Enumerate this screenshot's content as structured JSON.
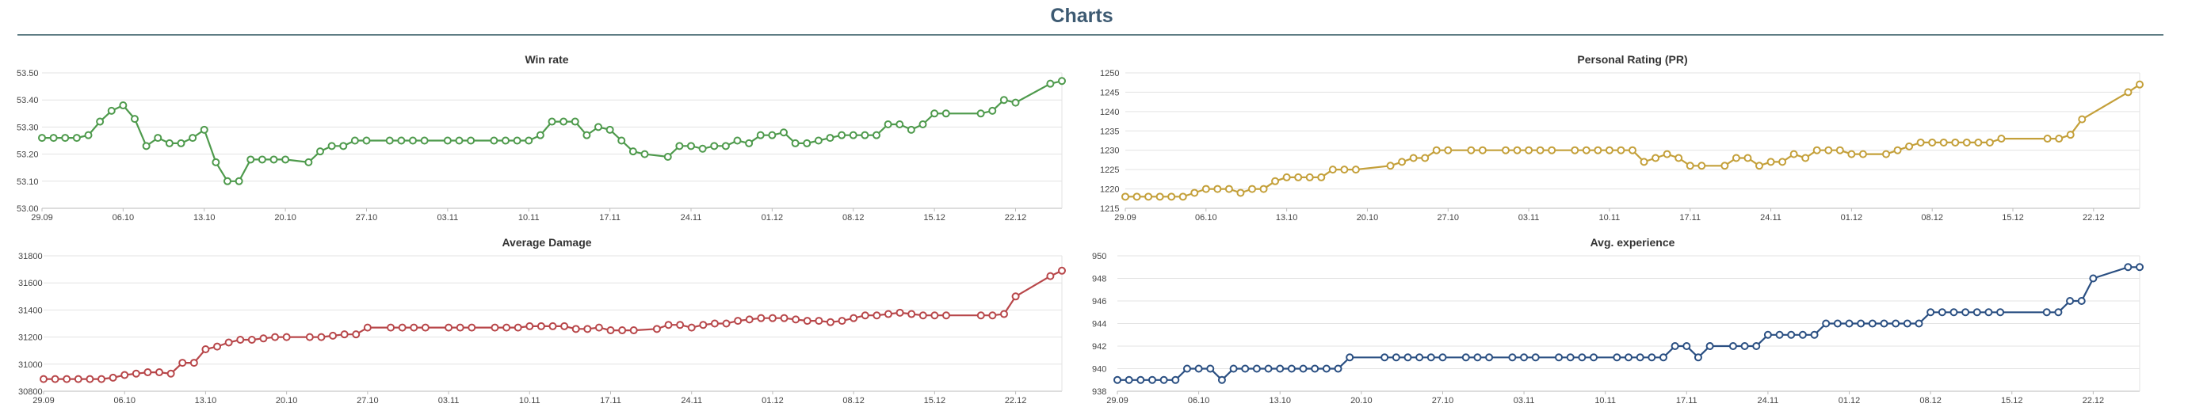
{
  "page": {
    "title": "Charts"
  },
  "x_ticks": [
    "29.09",
    "06.10",
    "13.10",
    "20.10",
    "27.10",
    "03.11",
    "10.11",
    "17.11",
    "24.11",
    "01.12",
    "08.12",
    "15.12",
    "22.12"
  ],
  "chart_data": [
    {
      "type": "line",
      "title": "Win rate",
      "color": "#4e9a4c",
      "ylim": [
        53.0,
        53.5
      ],
      "yticks": [
        "53.00",
        "53.10",
        "53.20",
        "53.30",
        "53.40",
        "53.50"
      ],
      "xticks": [
        "29.09",
        "06.10",
        "13.10",
        "20.10",
        "27.10",
        "03.11",
        "10.11",
        "17.11",
        "24.11",
        "01.12",
        "08.12",
        "15.12",
        "22.12"
      ],
      "grid": true,
      "points": [
        [
          0,
          53.26
        ],
        [
          1,
          53.26
        ],
        [
          2,
          53.26
        ],
        [
          3,
          53.26
        ],
        [
          4,
          53.27
        ],
        [
          5,
          53.32
        ],
        [
          6,
          53.36
        ],
        [
          7,
          53.38
        ],
        [
          8,
          53.33
        ],
        [
          9,
          53.23
        ],
        [
          10,
          53.26
        ],
        [
          11,
          53.24
        ],
        [
          12,
          53.24
        ],
        [
          13,
          53.26
        ],
        [
          14,
          53.29
        ],
        [
          15,
          53.17
        ],
        [
          16,
          53.1
        ],
        [
          17,
          53.1
        ],
        [
          18,
          53.18
        ],
        [
          19,
          53.18
        ],
        [
          20,
          53.18
        ],
        [
          21,
          53.18
        ],
        [
          23,
          53.17
        ],
        [
          24,
          53.21
        ],
        [
          25,
          53.23
        ],
        [
          26,
          53.23
        ],
        [
          27,
          53.25
        ],
        [
          28,
          53.25
        ],
        [
          30,
          53.25
        ],
        [
          31,
          53.25
        ],
        [
          32,
          53.25
        ],
        [
          33,
          53.25
        ],
        [
          35,
          53.25
        ],
        [
          36,
          53.25
        ],
        [
          37,
          53.25
        ],
        [
          39,
          53.25
        ],
        [
          40,
          53.25
        ],
        [
          41,
          53.25
        ],
        [
          42,
          53.25
        ],
        [
          43,
          53.27
        ],
        [
          44,
          53.32
        ],
        [
          45,
          53.32
        ],
        [
          46,
          53.32
        ],
        [
          47,
          53.27
        ],
        [
          48,
          53.3
        ],
        [
          49,
          53.29
        ],
        [
          50,
          53.25
        ],
        [
          51,
          53.21
        ],
        [
          52,
          53.2
        ],
        [
          54,
          53.19
        ],
        [
          55,
          53.23
        ],
        [
          56,
          53.23
        ],
        [
          57,
          53.22
        ],
        [
          58,
          53.23
        ],
        [
          59,
          53.23
        ],
        [
          60,
          53.25
        ],
        [
          61,
          53.24
        ],
        [
          62,
          53.27
        ],
        [
          63,
          53.27
        ],
        [
          64,
          53.28
        ],
        [
          65,
          53.24
        ],
        [
          66,
          53.24
        ],
        [
          67,
          53.25
        ],
        [
          68,
          53.26
        ],
        [
          69,
          53.27
        ],
        [
          70,
          53.27
        ],
        [
          71,
          53.27
        ],
        [
          72,
          53.27
        ],
        [
          73,
          53.31
        ],
        [
          74,
          53.31
        ],
        [
          75,
          53.29
        ],
        [
          76,
          53.31
        ],
        [
          77,
          53.35
        ],
        [
          78,
          53.35
        ],
        [
          81,
          53.35
        ],
        [
          82,
          53.36
        ],
        [
          83,
          53.4
        ],
        [
          84,
          53.39
        ],
        [
          87,
          53.46
        ],
        [
          88,
          53.47
        ]
      ]
    },
    {
      "type": "line",
      "title": "Personal Rating (PR)",
      "color": "#c4a03a",
      "ylim": [
        1215,
        1250
      ],
      "yticks": [
        "1215",
        "1220",
        "1225",
        "1230",
        "1235",
        "1240",
        "1245",
        "1250"
      ],
      "xticks": [
        "29.09",
        "06.10",
        "13.10",
        "20.10",
        "27.10",
        "03.11",
        "10.11",
        "17.11",
        "24.11",
        "01.12",
        "08.12",
        "15.12",
        "22.12"
      ],
      "grid": true,
      "points": [
        [
          0,
          1218
        ],
        [
          1,
          1218
        ],
        [
          2,
          1218
        ],
        [
          3,
          1218
        ],
        [
          4,
          1218
        ],
        [
          5,
          1218
        ],
        [
          6,
          1219
        ],
        [
          7,
          1220
        ],
        [
          8,
          1220
        ],
        [
          9,
          1220
        ],
        [
          10,
          1219
        ],
        [
          11,
          1220
        ],
        [
          12,
          1220
        ],
        [
          13,
          1222
        ],
        [
          14,
          1223
        ],
        [
          15,
          1223
        ],
        [
          16,
          1223
        ],
        [
          17,
          1223
        ],
        [
          18,
          1225
        ],
        [
          19,
          1225
        ],
        [
          20,
          1225
        ],
        [
          23,
          1226
        ],
        [
          24,
          1227
        ],
        [
          25,
          1228
        ],
        [
          26,
          1228
        ],
        [
          27,
          1230
        ],
        [
          28,
          1230
        ],
        [
          30,
          1230
        ],
        [
          31,
          1230
        ],
        [
          33,
          1230
        ],
        [
          34,
          1230
        ],
        [
          35,
          1230
        ],
        [
          36,
          1230
        ],
        [
          37,
          1230
        ],
        [
          39,
          1230
        ],
        [
          40,
          1230
        ],
        [
          41,
          1230
        ],
        [
          42,
          1230
        ],
        [
          43,
          1230
        ],
        [
          44,
          1230
        ],
        [
          45,
          1227
        ],
        [
          46,
          1228
        ],
        [
          47,
          1229
        ],
        [
          48,
          1228
        ],
        [
          49,
          1226
        ],
        [
          50,
          1226
        ],
        [
          52,
          1226
        ],
        [
          53,
          1228
        ],
        [
          54,
          1228
        ],
        [
          55,
          1226
        ],
        [
          56,
          1227
        ],
        [
          57,
          1227
        ],
        [
          58,
          1229
        ],
        [
          59,
          1228
        ],
        [
          60,
          1230
        ],
        [
          61,
          1230
        ],
        [
          62,
          1230
        ],
        [
          63,
          1229
        ],
        [
          64,
          1229
        ],
        [
          66,
          1229
        ],
        [
          67,
          1230
        ],
        [
          68,
          1231
        ],
        [
          69,
          1232
        ],
        [
          70,
          1232
        ],
        [
          71,
          1232
        ],
        [
          72,
          1232
        ],
        [
          73,
          1232
        ],
        [
          74,
          1232
        ],
        [
          75,
          1232
        ],
        [
          76,
          1233
        ],
        [
          80,
          1233
        ],
        [
          81,
          1233
        ],
        [
          82,
          1234
        ],
        [
          83,
          1238
        ],
        [
          87,
          1245
        ],
        [
          88,
          1247
        ]
      ]
    },
    {
      "type": "line",
      "title": "Average Damage",
      "color": "#b8474a",
      "ylim": [
        30800,
        31800
      ],
      "yticks": [
        "30800",
        "31000",
        "31200",
        "31400",
        "31600",
        "31800"
      ],
      "xticks": [
        "29.09",
        "06.10",
        "13.10",
        "20.10",
        "27.10",
        "03.11",
        "10.11",
        "17.11",
        "24.11",
        "01.12",
        "08.12",
        "15.12",
        "22.12"
      ],
      "grid": true,
      "points": [
        [
          0,
          30890
        ],
        [
          1,
          30890
        ],
        [
          2,
          30890
        ],
        [
          3,
          30890
        ],
        [
          4,
          30890
        ],
        [
          5,
          30890
        ],
        [
          6,
          30900
        ],
        [
          7,
          30920
        ],
        [
          8,
          30930
        ],
        [
          9,
          30940
        ],
        [
          10,
          30940
        ],
        [
          11,
          30930
        ],
        [
          12,
          31010
        ],
        [
          13,
          31010
        ],
        [
          14,
          31110
        ],
        [
          15,
          31130
        ],
        [
          16,
          31160
        ],
        [
          17,
          31180
        ],
        [
          18,
          31180
        ],
        [
          19,
          31190
        ],
        [
          20,
          31200
        ],
        [
          21,
          31200
        ],
        [
          23,
          31200
        ],
        [
          24,
          31200
        ],
        [
          25,
          31210
        ],
        [
          26,
          31220
        ],
        [
          27,
          31220
        ],
        [
          28,
          31270
        ],
        [
          30,
          31270
        ],
        [
          31,
          31270
        ],
        [
          32,
          31270
        ],
        [
          33,
          31270
        ],
        [
          35,
          31270
        ],
        [
          36,
          31270
        ],
        [
          37,
          31270
        ],
        [
          39,
          31270
        ],
        [
          40,
          31270
        ],
        [
          41,
          31270
        ],
        [
          42,
          31280
        ],
        [
          43,
          31280
        ],
        [
          44,
          31280
        ],
        [
          45,
          31280
        ],
        [
          46,
          31260
        ],
        [
          47,
          31260
        ],
        [
          48,
          31270
        ],
        [
          49,
          31250
        ],
        [
          50,
          31250
        ],
        [
          51,
          31250
        ],
        [
          53,
          31260
        ],
        [
          54,
          31290
        ],
        [
          55,
          31290
        ],
        [
          56,
          31270
        ],
        [
          57,
          31290
        ],
        [
          58,
          31300
        ],
        [
          59,
          31300
        ],
        [
          60,
          31320
        ],
        [
          61,
          31330
        ],
        [
          62,
          31340
        ],
        [
          63,
          31340
        ],
        [
          64,
          31340
        ],
        [
          65,
          31330
        ],
        [
          66,
          31320
        ],
        [
          67,
          31320
        ],
        [
          68,
          31310
        ],
        [
          69,
          31320
        ],
        [
          70,
          31340
        ],
        [
          71,
          31360
        ],
        [
          72,
          31360
        ],
        [
          73,
          31370
        ],
        [
          74,
          31380
        ],
        [
          75,
          31370
        ],
        [
          76,
          31360
        ],
        [
          77,
          31360
        ],
        [
          78,
          31360
        ],
        [
          81,
          31360
        ],
        [
          82,
          31360
        ],
        [
          83,
          31370
        ],
        [
          84,
          31500
        ],
        [
          87,
          31650
        ],
        [
          88,
          31690
        ]
      ]
    },
    {
      "type": "line",
      "title": "Avg. experience",
      "color": "#2a4f82",
      "ylim": [
        938,
        950
      ],
      "yticks": [
        "938",
        "940",
        "942",
        "944",
        "946",
        "948",
        "950"
      ],
      "xticks": [
        "29.09",
        "06.10",
        "13.10",
        "20.10",
        "27.10",
        "03.11",
        "10.11",
        "17.11",
        "24.11",
        "01.12",
        "08.12",
        "15.12",
        "22.12"
      ],
      "grid": true,
      "points": [
        [
          0,
          939
        ],
        [
          1,
          939
        ],
        [
          2,
          939
        ],
        [
          3,
          939
        ],
        [
          4,
          939
        ],
        [
          5,
          939
        ],
        [
          6,
          940
        ],
        [
          7,
          940
        ],
        [
          8,
          940
        ],
        [
          9,
          939
        ],
        [
          10,
          940
        ],
        [
          11,
          940
        ],
        [
          12,
          940
        ],
        [
          13,
          940
        ],
        [
          14,
          940
        ],
        [
          15,
          940
        ],
        [
          16,
          940
        ],
        [
          17,
          940
        ],
        [
          18,
          940
        ],
        [
          19,
          940
        ],
        [
          20,
          941
        ],
        [
          23,
          941
        ],
        [
          24,
          941
        ],
        [
          25,
          941
        ],
        [
          26,
          941
        ],
        [
          27,
          941
        ],
        [
          28,
          941
        ],
        [
          30,
          941
        ],
        [
          31,
          941
        ],
        [
          32,
          941
        ],
        [
          34,
          941
        ],
        [
          35,
          941
        ],
        [
          36,
          941
        ],
        [
          38,
          941
        ],
        [
          39,
          941
        ],
        [
          40,
          941
        ],
        [
          41,
          941
        ],
        [
          43,
          941
        ],
        [
          44,
          941
        ],
        [
          45,
          941
        ],
        [
          46,
          941
        ],
        [
          47,
          941
        ],
        [
          48,
          942
        ],
        [
          49,
          942
        ],
        [
          50,
          941
        ],
        [
          51,
          942
        ],
        [
          53,
          942
        ],
        [
          54,
          942
        ],
        [
          55,
          942
        ],
        [
          56,
          943
        ],
        [
          57,
          943
        ],
        [
          58,
          943
        ],
        [
          59,
          943
        ],
        [
          60,
          943
        ],
        [
          61,
          944
        ],
        [
          62,
          944
        ],
        [
          63,
          944
        ],
        [
          64,
          944
        ],
        [
          65,
          944
        ],
        [
          66,
          944
        ],
        [
          67,
          944
        ],
        [
          68,
          944
        ],
        [
          69,
          944
        ],
        [
          70,
          945
        ],
        [
          71,
          945
        ],
        [
          72,
          945
        ],
        [
          73,
          945
        ],
        [
          74,
          945
        ],
        [
          75,
          945
        ],
        [
          76,
          945
        ],
        [
          80,
          945
        ],
        [
          81,
          945
        ],
        [
          82,
          946
        ],
        [
          83,
          946
        ],
        [
          84,
          948
        ],
        [
          87,
          949
        ],
        [
          88,
          949
        ]
      ]
    }
  ]
}
